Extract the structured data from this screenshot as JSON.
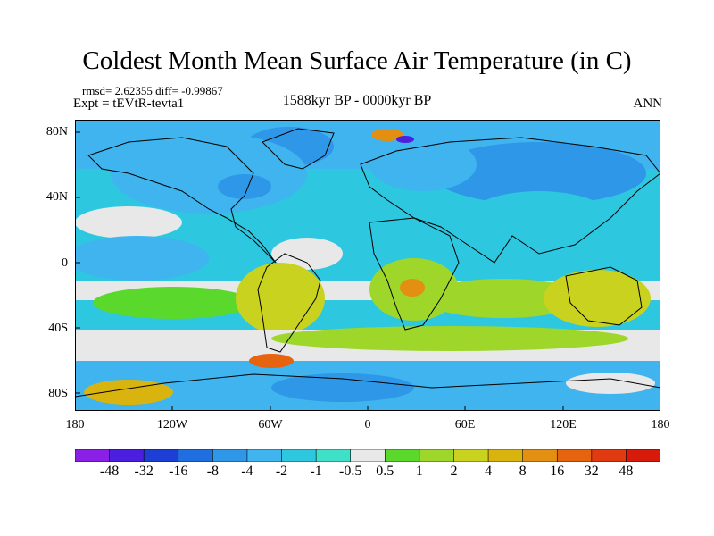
{
  "header": {
    "title": "Coldest Month Mean Surface Air Temperature (in C)",
    "stats": "rmsd= 2.62355 diff= -0.99867",
    "experiment": "Expt = tEVtR-tevta1",
    "period": "1588kyr BP - 0000kyr BP",
    "season": "ANN"
  },
  "axes": {
    "y_labels": [
      "80N",
      "40N",
      "0",
      "40S",
      "80S"
    ],
    "x_labels": [
      "180",
      "120W",
      "60W",
      "0",
      "60E",
      "120E",
      "180"
    ]
  },
  "colorbar": {
    "labels": [
      "-48",
      "-32",
      "-16",
      "-8",
      "-4",
      "-2",
      "-1",
      "-0.5",
      "0.5",
      "1",
      "2",
      "4",
      "8",
      "16",
      "32",
      "48"
    ],
    "colors": [
      "#8a1fe6",
      "#4b1ee0",
      "#1e3fd6",
      "#1f6fe0",
      "#2f97e8",
      "#3fb4ef",
      "#2ec7e0",
      "#3fe0c8",
      "#e8e8e8",
      "#5ad82c",
      "#9ed629",
      "#c8d21f",
      "#d9b40e",
      "#e28f12",
      "#e66310",
      "#e03a10",
      "#d81a0a"
    ]
  },
  "map_legend_colors": {
    "ocean_base": "#2ec7e0",
    "land_base": "#3fb4ef",
    "coast": "#000000"
  }
}
